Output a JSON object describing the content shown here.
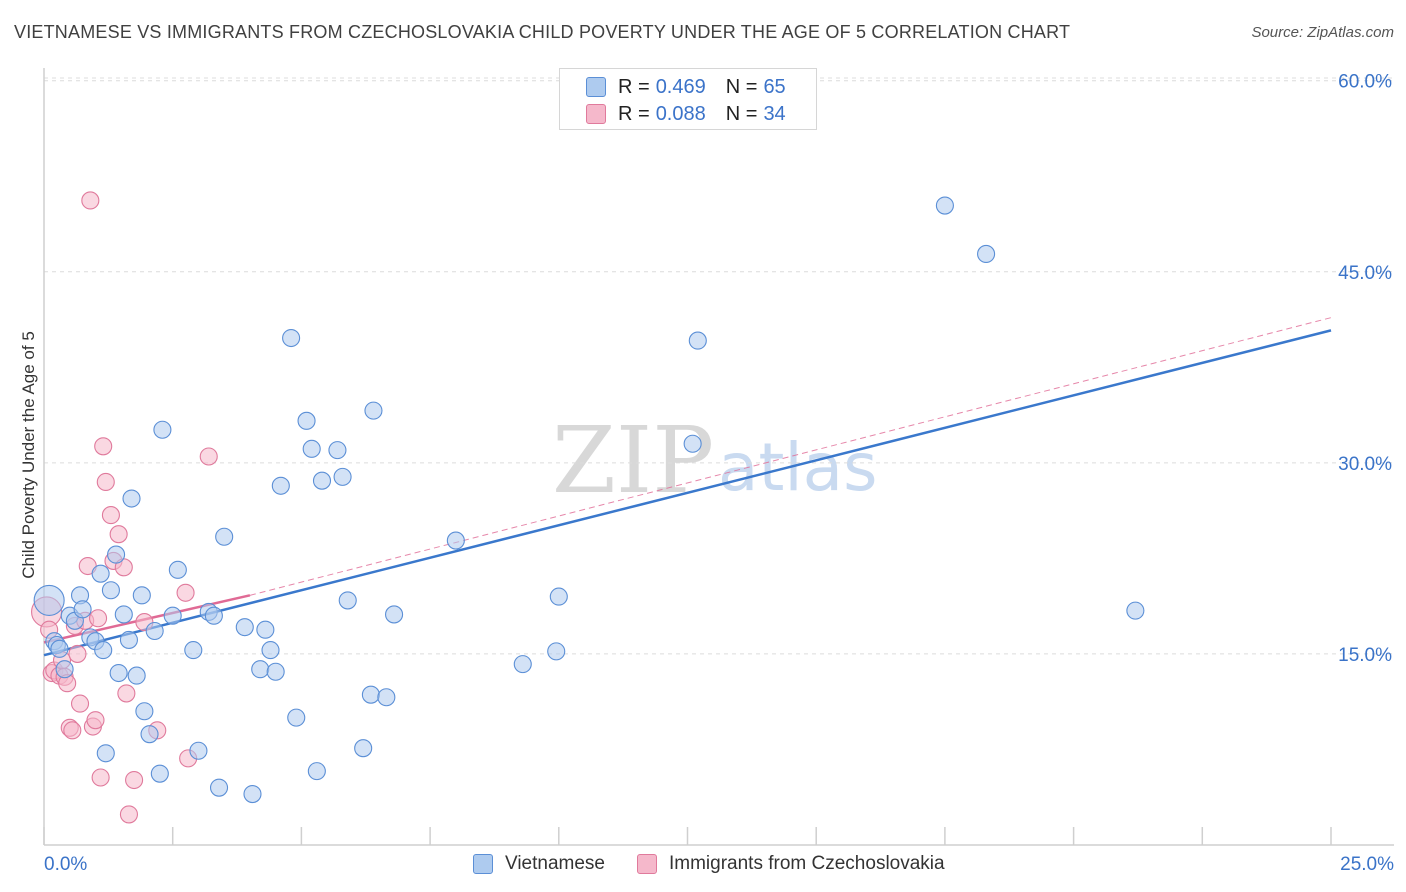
{
  "title": "VIETNAMESE VS IMMIGRANTS FROM CZECHOSLOVAKIA CHILD POVERTY UNDER THE AGE OF 5 CORRELATION CHART",
  "source": "Source: ZipAtlas.com",
  "watermark": {
    "zip": "ZIP",
    "atlas": "atlas"
  },
  "legend": {
    "r_label": "R =",
    "n_label": "N =",
    "rows": [
      {
        "r": "0.469",
        "n": "65"
      },
      {
        "r": "0.088",
        "n": "34"
      }
    ]
  },
  "colors": {
    "blue_fill": "#aecbef",
    "blue_stroke": "#5b8fd6",
    "blue_line": "#3a78cc",
    "pink_fill": "#f5b8cb",
    "pink_stroke": "#e07a9c",
    "pink_line": "#e06a95",
    "grid": "#dcdcdc",
    "tick_text": "#3a73c8"
  },
  "chart_data": {
    "type": "scatter",
    "title": "VIETNAMESE VS IMMIGRANTS FROM CZECHOSLOVAKIA CHILD POVERTY UNDER THE AGE OF 5 CORRELATION CHART",
    "xlabel": "",
    "ylabel": "Child Poverty Under the Age of 5",
    "xlim": [
      0,
      25
    ],
    "ylim": [
      0,
      60
    ],
    "x_tick_labels": [
      "0.0%",
      "25.0%"
    ],
    "y_ticks": [
      15,
      30,
      45,
      60
    ],
    "y_tick_labels": [
      "15.0%",
      "30.0%",
      "45.0%",
      "60.0%"
    ],
    "grid": true,
    "series": [
      {
        "name": "Vietnamese",
        "r": 0.469,
        "n": 65,
        "trend": {
          "x": [
            0,
            25
          ],
          "y": [
            14.9,
            40.4
          ]
        },
        "points": [
          [
            0.1,
            19.2
          ],
          [
            0.2,
            16.0
          ],
          [
            0.25,
            15.7
          ],
          [
            0.3,
            15.4
          ],
          [
            0.4,
            13.8
          ],
          [
            0.5,
            18.0
          ],
          [
            0.6,
            17.6
          ],
          [
            0.7,
            19.6
          ],
          [
            0.75,
            18.5
          ],
          [
            0.9,
            16.3
          ],
          [
            1.0,
            16.0
          ],
          [
            1.1,
            21.3
          ],
          [
            1.15,
            15.3
          ],
          [
            1.2,
            7.2
          ],
          [
            1.3,
            20.0
          ],
          [
            1.4,
            22.8
          ],
          [
            1.45,
            13.5
          ],
          [
            1.55,
            18.1
          ],
          [
            1.65,
            16.1
          ],
          [
            1.7,
            27.2
          ],
          [
            1.8,
            13.3
          ],
          [
            1.9,
            19.6
          ],
          [
            1.95,
            10.5
          ],
          [
            2.05,
            8.7
          ],
          [
            2.15,
            16.8
          ],
          [
            2.25,
            5.6
          ],
          [
            2.3,
            32.6
          ],
          [
            2.5,
            18.0
          ],
          [
            2.6,
            21.6
          ],
          [
            2.9,
            15.3
          ],
          [
            3.0,
            7.4
          ],
          [
            3.2,
            18.3
          ],
          [
            3.3,
            18.0
          ],
          [
            3.4,
            4.5
          ],
          [
            3.5,
            24.2
          ],
          [
            3.9,
            17.1
          ],
          [
            4.05,
            4.0
          ],
          [
            4.2,
            13.8
          ],
          [
            4.3,
            16.9
          ],
          [
            4.4,
            15.3
          ],
          [
            4.5,
            13.6
          ],
          [
            4.6,
            28.2
          ],
          [
            4.8,
            39.8
          ],
          [
            4.9,
            10.0
          ],
          [
            5.1,
            33.3
          ],
          [
            5.2,
            31.1
          ],
          [
            5.3,
            5.8
          ],
          [
            5.4,
            28.6
          ],
          [
            5.7,
            31.0
          ],
          [
            5.8,
            28.9
          ],
          [
            5.9,
            19.2
          ],
          [
            6.2,
            7.6
          ],
          [
            6.35,
            11.8
          ],
          [
            6.4,
            34.1
          ],
          [
            6.65,
            11.6
          ],
          [
            6.8,
            18.1
          ],
          [
            8.0,
            23.9
          ],
          [
            9.3,
            14.2
          ],
          [
            9.95,
            15.2
          ],
          [
            10.0,
            19.5
          ],
          [
            12.6,
            31.5
          ],
          [
            12.7,
            39.6
          ],
          [
            17.5,
            50.2
          ],
          [
            18.3,
            46.4
          ],
          [
            21.2,
            18.4
          ]
        ]
      },
      {
        "name": "Immigrants from Czechoslovakia",
        "r": 0.088,
        "n": 34,
        "trend": {
          "x": [
            0,
            4.0
          ],
          "y": [
            15.9,
            19.6
          ]
        },
        "trend_ext": {
          "x": [
            4.0,
            25
          ],
          "y": [
            19.6,
            41.4
          ]
        },
        "points": [
          [
            0.05,
            18.3
          ],
          [
            0.1,
            16.9
          ],
          [
            0.15,
            13.5
          ],
          [
            0.2,
            13.7
          ],
          [
            0.3,
            13.3
          ],
          [
            0.35,
            14.5
          ],
          [
            0.4,
            13.2
          ],
          [
            0.45,
            12.7
          ],
          [
            0.5,
            9.2
          ],
          [
            0.55,
            9.0
          ],
          [
            0.6,
            17.2
          ],
          [
            0.65,
            15.0
          ],
          [
            0.7,
            11.1
          ],
          [
            0.8,
            17.6
          ],
          [
            0.85,
            21.9
          ],
          [
            0.9,
            50.6
          ],
          [
            0.95,
            9.3
          ],
          [
            1.0,
            9.8
          ],
          [
            1.05,
            17.8
          ],
          [
            1.1,
            5.3
          ],
          [
            1.15,
            31.3
          ],
          [
            1.2,
            28.5
          ],
          [
            1.3,
            25.9
          ],
          [
            1.35,
            22.3
          ],
          [
            1.45,
            24.4
          ],
          [
            1.55,
            21.8
          ],
          [
            1.6,
            11.9
          ],
          [
            1.65,
            2.4
          ],
          [
            1.75,
            5.1
          ],
          [
            1.95,
            17.5
          ],
          [
            2.2,
            9.0
          ],
          [
            2.75,
            19.8
          ],
          [
            2.8,
            6.8
          ],
          [
            3.2,
            30.5
          ]
        ]
      }
    ]
  }
}
